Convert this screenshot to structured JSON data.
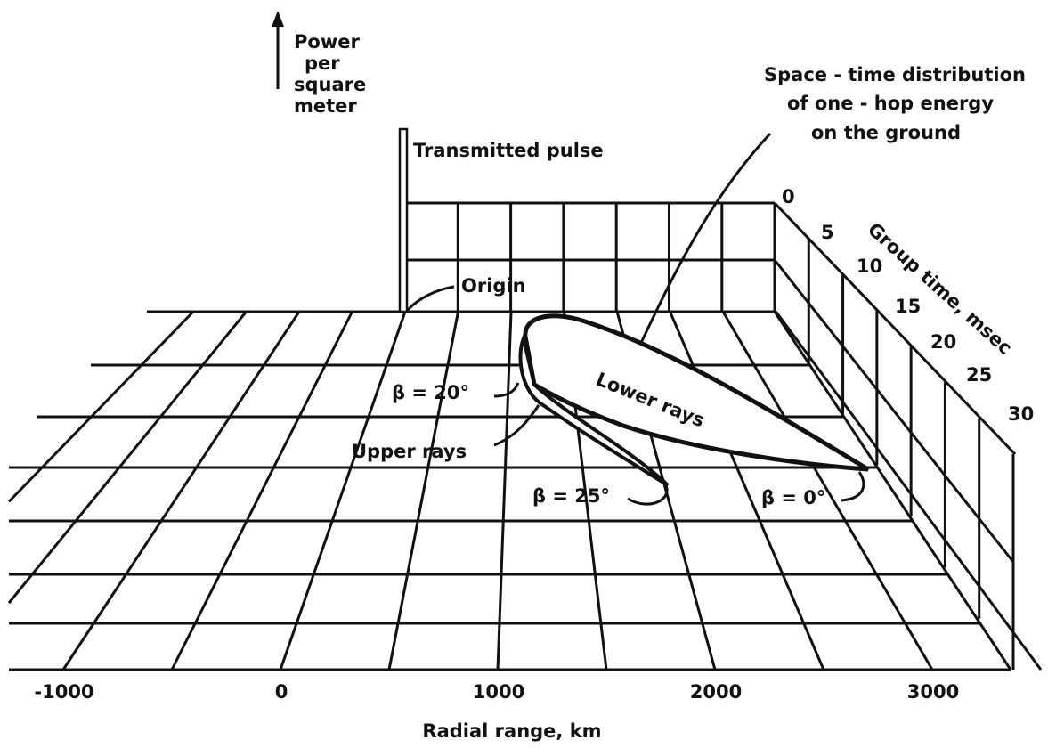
{
  "y_axis_label": [
    "Power",
    "per",
    "square",
    "meter"
  ],
  "pulse_label": "Transmitted pulse",
  "distribution_label": [
    "Space - time distribution",
    "of one - hop energy",
    "on the ground"
  ],
  "origin_label": "Origin",
  "group_time_axis": {
    "label": "Group time, msec",
    "ticks": [
      "0",
      "5",
      "10",
      "15",
      "20",
      "25",
      "30"
    ]
  },
  "range_axis": {
    "label": "Radial range, km",
    "ticks": [
      "-1000",
      "0",
      "1000",
      "2000",
      "3000"
    ]
  },
  "annotations": {
    "lower_rays": "Lower rays",
    "upper_rays": "Upper rays",
    "beta_20": "β = 20°",
    "beta_25": "β = 25°",
    "beta_0": "β = 0°"
  }
}
